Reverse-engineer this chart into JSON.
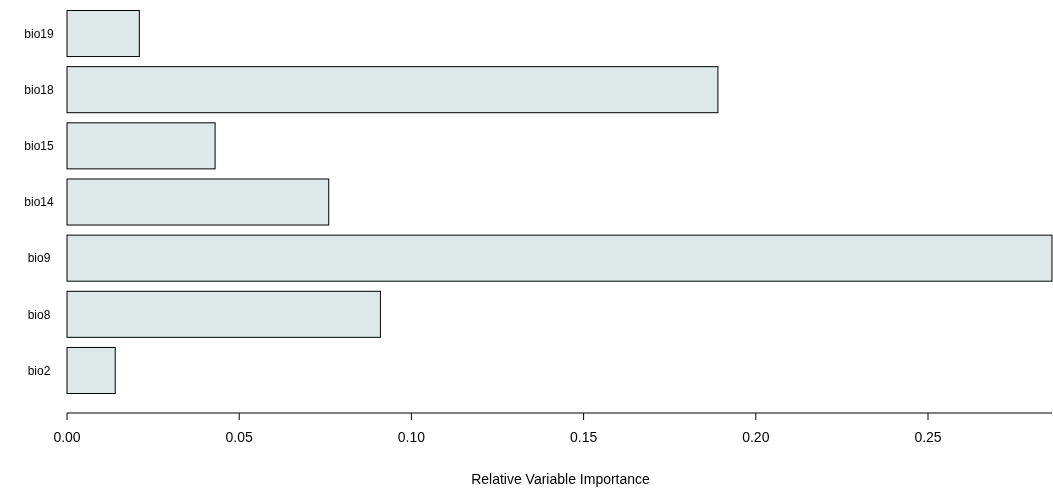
{
  "chart_data": {
    "type": "bar",
    "orientation": "horizontal",
    "xlabel": "Relative Variable Importance",
    "categories": [
      "bio19",
      "bio18",
      "bio15",
      "bio14",
      "bio9",
      "bio8",
      "bio2"
    ],
    "values": [
      0.021,
      0.189,
      0.043,
      0.076,
      0.286,
      0.091,
      0.014
    ],
    "color": "#dde8e8",
    "xlim": [
      0,
      0.286
    ],
    "xticks": [
      {
        "value": 0,
        "label": "0.00"
      },
      {
        "value": 0.05,
        "label": "0.05"
      },
      {
        "value": 0.1,
        "label": "0.10"
      },
      {
        "value": 0.15,
        "label": "0.15"
      },
      {
        "value": 0.2,
        "label": "0.20"
      },
      {
        "value": 0.25,
        "label": "0.25"
      }
    ],
    "grid": false
  }
}
